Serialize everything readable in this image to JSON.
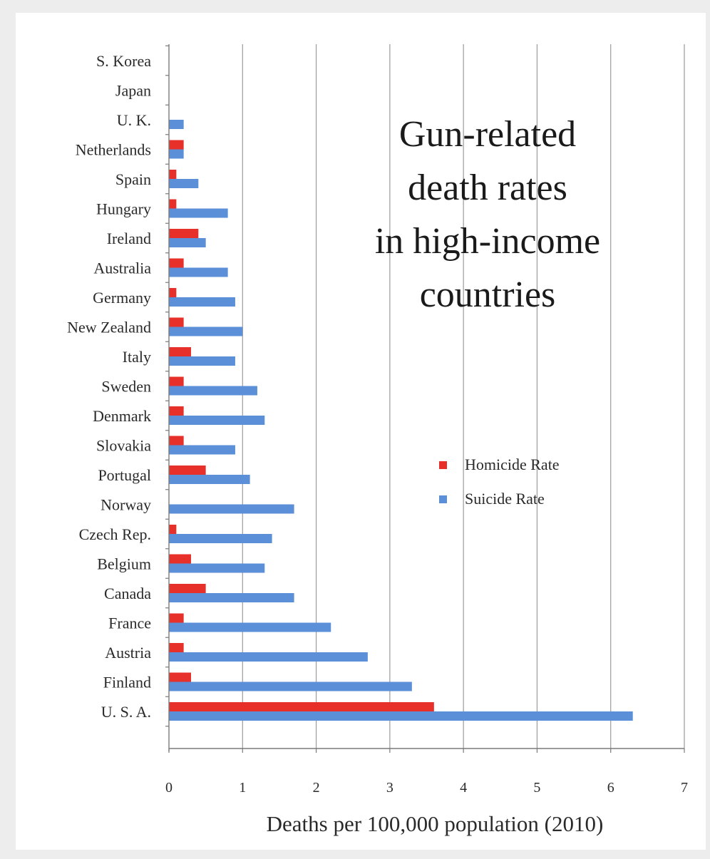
{
  "chart_data": {
    "type": "bar",
    "orientation": "horizontal",
    "title": "Gun-related death rates in high-income countries",
    "title_lines": [
      "Gun-related",
      "death rates",
      "in high-income",
      "countries"
    ],
    "xlabel": "Deaths per 100,000 population (2010)",
    "ylabel": "",
    "xlim": [
      0,
      7
    ],
    "x_ticks": [
      "0",
      "1",
      "2",
      "3",
      "4",
      "5",
      "6",
      "7"
    ],
    "grid": "vertical",
    "legend_position": "right",
    "categories": [
      "S. Korea",
      "Japan",
      "U. K.",
      "Netherlands",
      "Spain",
      "Hungary",
      "Ireland",
      "Australia",
      "Germany",
      "New Zealand",
      "Italy",
      "Sweden",
      "Denmark",
      "Slovakia",
      "Portugal",
      "Norway",
      "Czech Rep.",
      "Belgium",
      "Canada",
      "France",
      "Austria",
      "Finland",
      "U. S. A."
    ],
    "series": [
      {
        "name": "Homicide Rate",
        "color": "#e8302a",
        "values": [
          0,
          0,
          0,
          0.2,
          0.1,
          0.1,
          0.4,
          0.2,
          0.1,
          0.2,
          0.3,
          0.2,
          0.2,
          0.2,
          0.5,
          0,
          0.1,
          0.3,
          0.5,
          0.2,
          0.2,
          0.3,
          3.6
        ]
      },
      {
        "name": "Suicide Rate",
        "color": "#5b8fd8",
        "values": [
          0,
          0,
          0.2,
          0.2,
          0.4,
          0.8,
          0.5,
          0.8,
          0.9,
          1.0,
          0.9,
          1.2,
          1.3,
          0.9,
          1.1,
          1.7,
          1.4,
          1.3,
          1.7,
          2.2,
          2.7,
          3.3,
          6.3
        ]
      }
    ]
  }
}
